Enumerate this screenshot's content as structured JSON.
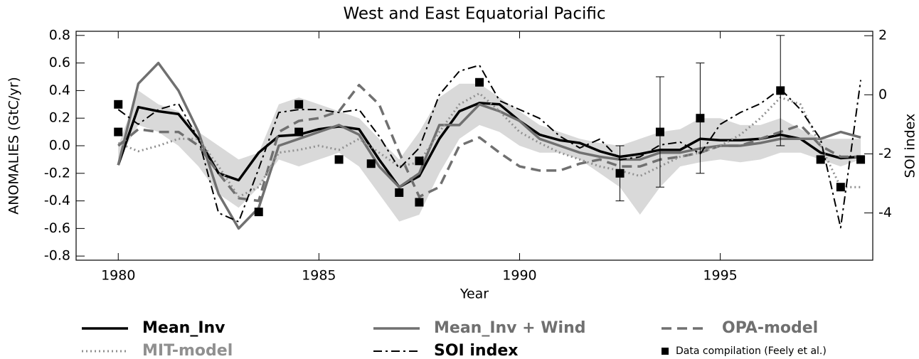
{
  "chart_data": {
    "type": "line",
    "title": "West and East Equatorial Pacific",
    "xlabel": "Year",
    "ylabel": "ANOMALIES (GtC/yr)",
    "y2label": "SOI index",
    "xlim": [
      1978.95,
      1998.8
    ],
    "xticks": [
      1980,
      1985,
      1990,
      1995
    ],
    "ylim": [
      -0.83,
      0.83
    ],
    "yticks": [
      {
        "value": -0.8,
        "label": "-0.8"
      },
      {
        "value": -0.6,
        "label": "-0.6"
      },
      {
        "value": -0.4,
        "label": "-0.4"
      },
      {
        "value": -0.2,
        "label": "-0.2"
      },
      {
        "value": 0,
        "label": "0.0"
      },
      0.2,
      0.4,
      0.6,
      0.8
    ],
    "y2lim": [
      -5.6,
      2.15
    ],
    "y2ticks": [
      -4,
      -2,
      0,
      2
    ],
    "x": [
      1980,
      1980.5,
      1981,
      1981.5,
      1982,
      1982.5,
      1983,
      1983.5,
      1984,
      1984.5,
      1985,
      1985.5,
      1986,
      1986.5,
      1987,
      1987.5,
      1988,
      1988.5,
      1989,
      1989.5,
      1990,
      1990.5,
      1991,
      1991.5,
      1992,
      1992.5,
      1993,
      1993.5,
      1994,
      1994.5,
      1995,
      1995.5,
      1996,
      1996.5,
      1997,
      1997.5,
      1998,
      1998.5
    ],
    "band": {
      "color": "#d9d9d9",
      "upper": [
        0.0,
        0.4,
        0.3,
        0.25,
        0.1,
        0.0,
        -0.1,
        -0.05,
        0.3,
        0.35,
        0.3,
        0.25,
        0.2,
        0.05,
        -0.1,
        0.1,
        0.35,
        0.45,
        0.45,
        0.35,
        0.25,
        0.15,
        0.1,
        0.05,
        0.02,
        0.0,
        0.05,
        0.1,
        0.12,
        0.2,
        0.2,
        0.15,
        0.15,
        0.2,
        0.12,
        0.05,
        0.05,
        0.05
      ],
      "lower": [
        -0.1,
        0.15,
        0.1,
        0.0,
        -0.15,
        -0.35,
        -0.45,
        -0.3,
        -0.1,
        -0.15,
        -0.1,
        -0.05,
        -0.15,
        -0.35,
        -0.55,
        -0.5,
        -0.2,
        0.05,
        0.15,
        0.1,
        0.0,
        -0.05,
        -0.05,
        -0.1,
        -0.2,
        -0.3,
        -0.5,
        -0.3,
        -0.15,
        -0.12,
        -0.1,
        -0.12,
        -0.1,
        -0.05,
        -0.05,
        -0.1,
        -0.15,
        -0.1
      ]
    },
    "series": [
      {
        "name": "Mean_Inv",
        "color": "#000000",
        "style": "solid",
        "width": 3.5,
        "values": [
          -0.14,
          0.28,
          0.25,
          0.23,
          0.05,
          -0.2,
          -0.25,
          -0.05,
          0.07,
          0.08,
          0.12,
          0.14,
          0.12,
          -0.1,
          -0.3,
          -0.22,
          0.05,
          0.25,
          0.31,
          0.3,
          0.18,
          0.08,
          0.04,
          0.02,
          -0.04,
          -0.08,
          -0.06,
          -0.03,
          -0.03,
          0.05,
          0.04,
          0.04,
          0.05,
          0.08,
          0.05,
          -0.05,
          -0.09,
          -0.08
        ]
      },
      {
        "name": "Mean_Inv + Wind",
        "color": "#707070",
        "style": "solid",
        "width": 3.5,
        "values": [
          -0.14,
          0.45,
          0.6,
          0.4,
          0.1,
          -0.35,
          -0.6,
          -0.45,
          0.0,
          0.05,
          0.1,
          0.15,
          0.08,
          -0.15,
          -0.3,
          -0.2,
          0.15,
          0.15,
          0.3,
          0.25,
          0.18,
          0.05,
          0.0,
          -0.05,
          -0.08,
          -0.1,
          -0.1,
          -0.05,
          -0.05,
          -0.02,
          0.0,
          0.0,
          0.02,
          0.05,
          0.05,
          0.05,
          0.1,
          0.06
        ]
      },
      {
        "name": "OPA-model",
        "color": "#707070",
        "style": "dashed",
        "width": 3.5,
        "values": [
          0.0,
          0.12,
          0.1,
          0.1,
          0.0,
          -0.2,
          -0.38,
          -0.4,
          0.1,
          0.18,
          0.2,
          0.25,
          0.44,
          0.3,
          -0.05,
          -0.37,
          -0.3,
          0.0,
          0.06,
          -0.05,
          -0.15,
          -0.18,
          -0.18,
          -0.13,
          -0.1,
          -0.15,
          -0.15,
          -0.1,
          -0.08,
          -0.05,
          0.0,
          0.0,
          0.05,
          0.1,
          0.15,
          0.0,
          -0.08,
          -0.08
        ]
      },
      {
        "name": "MIT-model",
        "color": "#909090",
        "style": "dotted",
        "width": 3,
        "values": [
          0.02,
          -0.04,
          0.0,
          0.05,
          0.05,
          -0.15,
          -0.37,
          -0.3,
          -0.05,
          -0.03,
          0.0,
          -0.03,
          0.05,
          -0.05,
          -0.15,
          -0.12,
          0.1,
          0.3,
          0.38,
          0.25,
          0.1,
          0.02,
          -0.05,
          -0.1,
          -0.15,
          -0.18,
          -0.22,
          -0.15,
          -0.08,
          -0.05,
          0.0,
          0.08,
          0.2,
          0.35,
          0.3,
          0.0,
          -0.3,
          -0.3
        ]
      },
      {
        "name": "SOI index",
        "color": "#000000",
        "style": "dashdot",
        "width": 2,
        "axis": "y2",
        "values": [
          -0.5,
          -1.0,
          -0.5,
          -0.3,
          -1.5,
          -4.0,
          -4.3,
          -2.5,
          -0.6,
          -0.5,
          -0.5,
          -0.6,
          -0.5,
          -1.4,
          -2.5,
          -1.8,
          0.0,
          0.8,
          1.0,
          -0.2,
          -0.5,
          -0.8,
          -1.4,
          -1.8,
          -1.5,
          -2.2,
          -2.1,
          -1.7,
          -1.6,
          -2.0,
          -1.0,
          -0.6,
          -0.3,
          0.2,
          -0.5,
          -1.5,
          -4.5,
          0.5
        ]
      }
    ],
    "points": {
      "name": "Data compilation (Feely et al.)",
      "color": "#000000",
      "x": [
        1980,
        1980,
        1983.5,
        1984.5,
        1984.5,
        1985.5,
        1986.3,
        1987,
        1987.5,
        1987.5,
        1989,
        1992.5,
        1993.5,
        1994.5,
        1996.5,
        1997.5,
        1998,
        1998.5
      ],
      "values": [
        0.3,
        0.1,
        -0.48,
        0.3,
        0.1,
        -0.1,
        -0.13,
        -0.34,
        -0.41,
        -0.11,
        0.46,
        -0.2,
        0.1,
        0.2,
        0.4,
        -0.1,
        -0.3,
        -0.1
      ],
      "errors": [
        null,
        null,
        null,
        null,
        null,
        null,
        null,
        null,
        null,
        null,
        null,
        0.2,
        0.4,
        0.4,
        0.4,
        null,
        null,
        null
      ]
    }
  }
}
